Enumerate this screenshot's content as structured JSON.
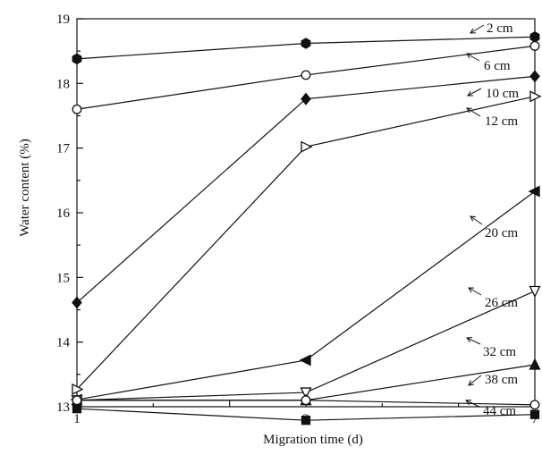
{
  "chart_data": {
    "type": "line",
    "xlabel": "Migration time (d)",
    "ylabel": "Water content (%)",
    "x": [
      "1",
      "3",
      "7"
    ],
    "xlim": [
      1,
      7
    ],
    "ylim": [
      13,
      19
    ],
    "yticks": [
      "13",
      "14",
      "15",
      "16",
      "17",
      "18",
      "19"
    ],
    "grid": false,
    "series": [
      {
        "name": "2 cm",
        "marker": "hexagon-filled",
        "values": [
          18.38,
          18.62,
          18.72
        ]
      },
      {
        "name": "6 cm",
        "marker": "circle-open",
        "values": [
          17.6,
          18.13,
          18.58
        ]
      },
      {
        "name": "10 cm",
        "marker": "diamond-filled",
        "values": [
          14.61,
          17.76,
          18.11
        ]
      },
      {
        "name": "12 cm",
        "marker": "triangle-right-open",
        "values": [
          13.27,
          17.02,
          17.8
        ]
      },
      {
        "name": "20 cm",
        "marker": "triangle-left-filled",
        "values": [
          13.11,
          13.72,
          16.33
        ]
      },
      {
        "name": "26 cm",
        "marker": "triangle-down-open",
        "values": [
          13.1,
          13.22,
          14.79
        ]
      },
      {
        "name": "32 cm",
        "marker": "triangle-up-filled",
        "values": [
          13.1,
          13.1,
          13.65
        ]
      },
      {
        "name": "38 cm",
        "marker": "circle-open",
        "values": [
          13.1,
          13.1,
          13.03
        ]
      },
      {
        "name": "44 cm",
        "marker": "square-filled",
        "values": [
          12.97,
          12.79,
          12.88
        ]
      }
    ]
  }
}
